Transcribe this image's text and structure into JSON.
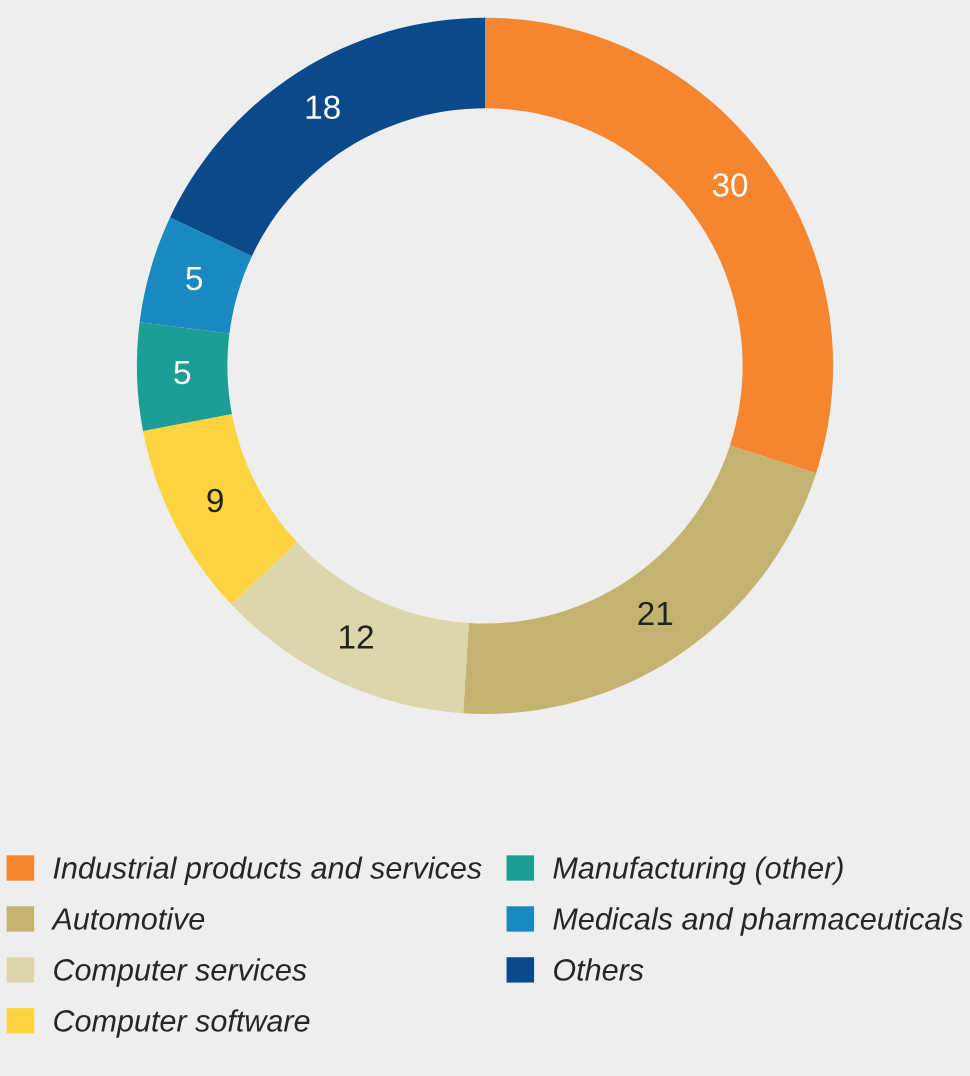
{
  "chart_data": {
    "type": "donut",
    "categories": [
      "Industrial products and services",
      "Automotive",
      "Computer services",
      "Computer software",
      "Manufacturing (other)",
      "Medicals and pharmaceuticals",
      "Others"
    ],
    "values": [
      30,
      21,
      12,
      9,
      5,
      5,
      18
    ],
    "colors": [
      "#f5852e",
      "#c4b270",
      "#dcd6aa",
      "#fdd43f",
      "#1c9e94",
      "#1a89c2",
      "#0b4a8a"
    ],
    "data_labels": true,
    "legend": "bottom"
  }
}
